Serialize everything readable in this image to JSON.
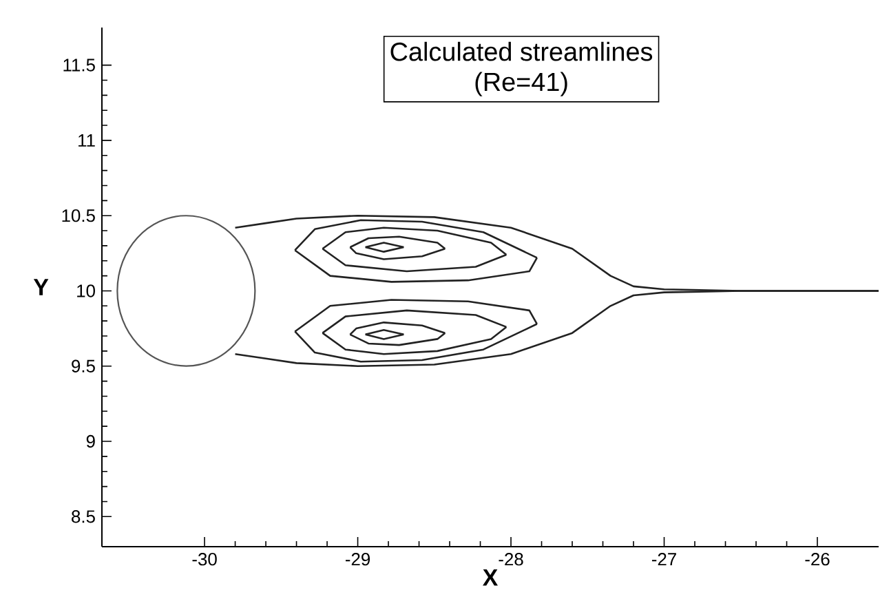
{
  "chart_data": {
    "type": "line",
    "title": "Calculated streamlines",
    "subtitle": "(Re=41)",
    "xlabel": "X",
    "ylabel": "Y",
    "xlim": [
      -30.67,
      -25.6
    ],
    "ylim": [
      8.3,
      11.75
    ],
    "xticks": [
      -30,
      -29,
      -28,
      -27,
      -26
    ],
    "yticks": [
      8.5,
      9,
      9.5,
      10,
      10.5,
      11,
      11.5
    ],
    "marker": "none",
    "line_style": "solid",
    "series": [
      {
        "color": "#222222",
        "x": [
          -29.8,
          -29.6,
          -29.4,
          -29.0,
          -28.5,
          -28.0,
          -27.6,
          -27.35,
          -27.2,
          -27.0,
          -26.5,
          -25.6
        ],
        "values": [
          10.42,
          10.45,
          10.48,
          10.5,
          10.49,
          10.42,
          10.28,
          10.1,
          10.03,
          10.01,
          10.0,
          10.0
        ]
      },
      {
        "color": "#222222",
        "x": [
          -29.8,
          -29.6,
          -29.4,
          -29.0,
          -28.5,
          -28.0,
          -27.6,
          -27.35,
          -27.2,
          -27.0,
          -26.5,
          -25.6
        ],
        "values": [
          9.58,
          9.55,
          9.52,
          9.5,
          9.51,
          9.58,
          9.72,
          9.9,
          9.97,
          9.99,
          10.0,
          10.0
        ]
      },
      {
        "color": "#222222",
        "x": [
          -29.41,
          -29.28,
          -28.98,
          -28.58,
          -28.18,
          -27.83
        ],
        "values": [
          10.27,
          10.41,
          10.47,
          10.46,
          10.39,
          10.22
        ]
      },
      {
        "color": "#222222",
        "x": [
          -29.41,
          -29.18,
          -28.78,
          -28.28,
          -27.88,
          -27.83
        ],
        "values": [
          10.27,
          10.1,
          10.06,
          10.07,
          10.13,
          10.22
        ]
      },
      {
        "color": "#222222",
        "x": [
          -29.23,
          -29.08,
          -28.83,
          -28.48,
          -28.13,
          -28.03
        ],
        "values": [
          10.28,
          10.39,
          10.42,
          10.4,
          10.32,
          10.24
        ]
      },
      {
        "color": "#222222",
        "x": [
          -29.23,
          -29.08,
          -28.68,
          -28.23,
          -28.03
        ],
        "values": [
          10.28,
          10.17,
          10.13,
          10.16,
          10.24
        ]
      },
      {
        "color": "#222222",
        "x": [
          -29.05,
          -28.93,
          -28.73,
          -28.48,
          -28.43
        ],
        "values": [
          10.29,
          10.35,
          10.36,
          10.32,
          10.28
        ]
      },
      {
        "color": "#222222",
        "x": [
          -29.05,
          -29.01,
          -28.83,
          -28.58,
          -28.43
        ],
        "values": [
          10.29,
          10.25,
          10.21,
          10.23,
          10.28
        ]
      },
      {
        "color": "#222222",
        "x": [
          -28.95,
          -28.83,
          -28.7
        ],
        "values": [
          10.29,
          10.32,
          10.29
        ]
      },
      {
        "color": "#222222",
        "x": [
          -28.95,
          -28.83,
          -28.7
        ],
        "values": [
          10.29,
          10.26,
          10.29
        ]
      },
      {
        "color": "#222222",
        "x": [
          -29.41,
          -29.18,
          -28.78,
          -28.28,
          -27.88,
          -27.83
        ],
        "values": [
          9.73,
          9.9,
          9.94,
          9.93,
          9.87,
          9.78
        ]
      },
      {
        "color": "#222222",
        "x": [
          -29.41,
          -29.28,
          -28.98,
          -28.58,
          -28.18,
          -27.83
        ],
        "values": [
          9.73,
          9.59,
          9.53,
          9.54,
          9.61,
          9.78
        ]
      },
      {
        "color": "#222222",
        "x": [
          -29.23,
          -29.08,
          -28.68,
          -28.23,
          -28.03
        ],
        "values": [
          9.72,
          9.83,
          9.87,
          9.84,
          9.76
        ]
      },
      {
        "color": "#222222",
        "x": [
          -29.23,
          -29.08,
          -28.83,
          -28.48,
          -28.13,
          -28.03
        ],
        "values": [
          9.72,
          9.61,
          9.58,
          9.6,
          9.68,
          9.76
        ]
      },
      {
        "color": "#222222",
        "x": [
          -29.05,
          -29.01,
          -28.83,
          -28.58,
          -28.43
        ],
        "values": [
          9.71,
          9.75,
          9.79,
          9.77,
          9.72
        ]
      },
      {
        "color": "#222222",
        "x": [
          -29.05,
          -28.93,
          -28.73,
          -28.48,
          -28.43
        ],
        "values": [
          9.71,
          9.65,
          9.64,
          9.68,
          9.72
        ]
      },
      {
        "color": "#222222",
        "x": [
          -28.95,
          -28.83,
          -28.7
        ],
        "values": [
          9.71,
          9.74,
          9.71
        ]
      },
      {
        "color": "#222222",
        "x": [
          -28.95,
          -28.83,
          -28.7
        ],
        "values": [
          9.71,
          9.68,
          9.71
        ]
      }
    ]
  }
}
